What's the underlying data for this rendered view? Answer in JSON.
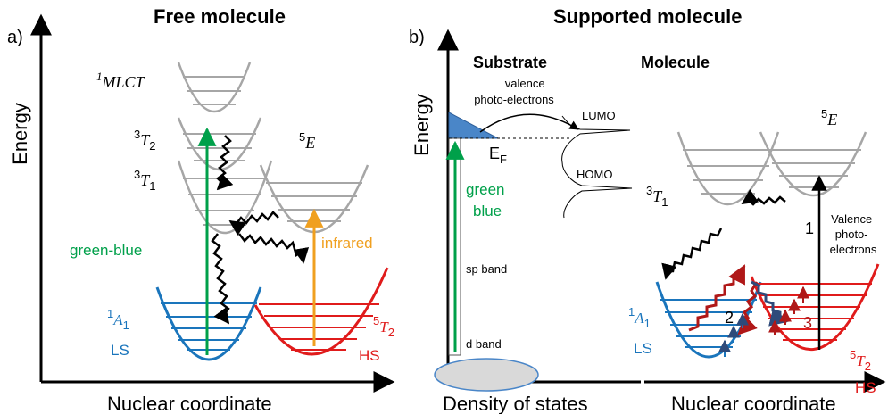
{
  "panel_a": {
    "label": "a)",
    "title": "Free molecule",
    "y_axis": "Energy",
    "x_axis": "Nuclear coordinate",
    "states": {
      "mlct": {
        "sup": "1",
        "name": "MLCT"
      },
      "t2_triplet": {
        "sup": "3",
        "name": "T",
        "sub": "2"
      },
      "t1_triplet": {
        "sup": "3",
        "name": "T",
        "sub": "1"
      },
      "e_quintet": {
        "sup": "5",
        "name": "E"
      },
      "a1": {
        "sup": "1",
        "name": "A",
        "sub": "1",
        "spin": "LS"
      },
      "t2_quintet": {
        "sup": "5",
        "name": "T",
        "sub": "2",
        "spin": "HS"
      }
    },
    "arrows": {
      "green": "green-blue",
      "orange": "infrared"
    }
  },
  "panel_b": {
    "label": "b)",
    "title": "Supported molecule",
    "y_axis": "Energy",
    "substrate": {
      "heading": "Substrate",
      "x_axis": "Density of states",
      "fermi": {
        "main": "E",
        "sub": "F"
      },
      "valence": [
        "valence",
        "photo-electrons"
      ],
      "lumo": "LUMO",
      "homo": "HOMO",
      "green_word": "green",
      "blue_word": "blue",
      "sp_band": "sp band",
      "d_band": "d band"
    },
    "molecule": {
      "heading": "Molecule",
      "x_axis": "Nuclear coordinate",
      "states": {
        "e_quintet": {
          "sup": "5",
          "name": "E"
        },
        "t1_triplet": {
          "sup": "3",
          "name": "T",
          "sub": "1"
        },
        "a1": {
          "sup": "1",
          "name": "A",
          "sub": "1",
          "spin": "LS"
        },
        "t2_quintet": {
          "sup": "5",
          "name": "T",
          "sub": "2",
          "spin": "HS"
        }
      },
      "steps": [
        "1",
        "2",
        "3"
      ],
      "valence_note": [
        "Valence",
        "photo-",
        "electrons"
      ]
    }
  },
  "colors": {
    "gray": "#a6a6a6",
    "blue": "#1a75bc",
    "red": "#e01b1b",
    "green": "#00a04a",
    "orange": "#f0a020",
    "dark_red": "#b01818",
    "navy": "#2e4a7a"
  }
}
